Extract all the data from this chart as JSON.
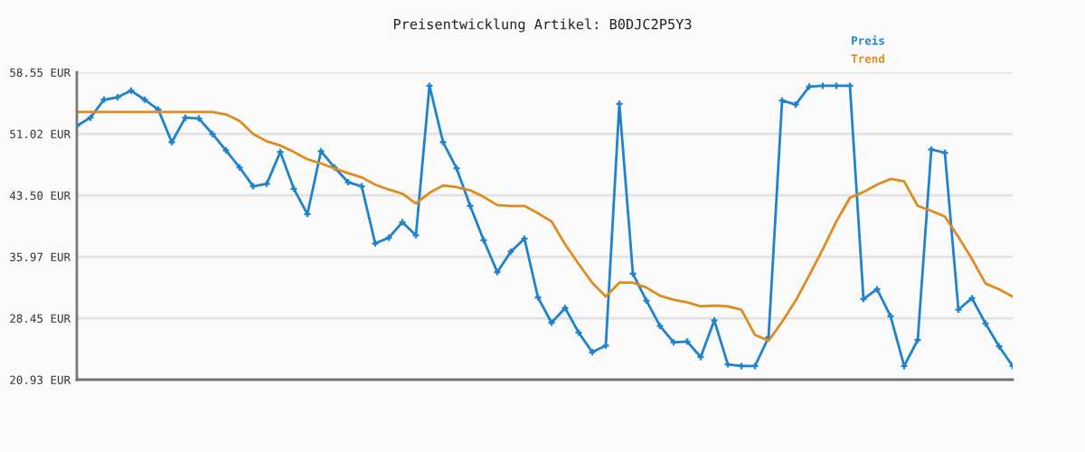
{
  "chart_data": {
    "type": "line",
    "title": "Preisentwicklung Artikel: B0DJC2P5Y3",
    "categories": [
      null,
      null,
      null,
      null,
      null,
      null,
      null,
      null,
      null,
      null,
      null,
      null,
      null,
      null,
      null,
      null,
      null,
      null,
      null,
      null,
      null,
      null,
      null,
      null,
      null,
      null,
      null,
      null,
      null,
      null,
      null,
      null,
      null,
      null,
      null,
      null,
      null,
      null,
      null,
      null,
      null,
      null,
      null,
      null,
      null,
      null,
      null,
      null,
      null,
      null,
      null,
      null,
      null,
      null,
      null,
      null,
      null,
      null,
      null,
      null,
      null,
      null,
      null,
      null,
      null,
      null,
      null,
      null,
      null,
      null
    ],
    "series": [
      {
        "name": "Preis",
        "color": "#1f83cc",
        "marker": "cross",
        "values": [
          52.0,
          53.0,
          55.2,
          55.5,
          56.3,
          55.2,
          54.0,
          50.0,
          53.0,
          52.9,
          51.0,
          49.0,
          46.9,
          44.6,
          44.9,
          48.8,
          44.3,
          41.2,
          48.9,
          46.9,
          45.1,
          44.6,
          37.6,
          38.3,
          40.2,
          38.6,
          56.9,
          50.0,
          46.8,
          42.2,
          38.0,
          34.1,
          36.6,
          38.2,
          31.0,
          27.9,
          29.7,
          26.7,
          24.3,
          25.1,
          54.7,
          33.9,
          30.6,
          27.5,
          25.5,
          25.6,
          23.7,
          28.2,
          22.8,
          22.6,
          22.6,
          26.1,
          55.1,
          54.6,
          56.8,
          56.9,
          56.9,
          56.9,
          30.8,
          32.0,
          28.7,
          22.6,
          25.8,
          49.1,
          48.7,
          29.5,
          30.9,
          27.8,
          25.0,
          22.6
        ]
      },
      {
        "name": "Trend",
        "color": "#e08b1f",
        "marker": "none",
        "values": [
          53.7,
          53.7,
          53.7,
          53.7,
          53.7,
          53.7,
          53.7,
          53.7,
          53.7,
          53.7,
          53.7,
          53.4,
          52.6,
          51.0,
          50.1,
          49.6,
          48.8,
          47.9,
          47.4,
          46.8,
          46.2,
          45.7,
          44.8,
          44.2,
          43.7,
          42.5,
          43.8,
          44.7,
          44.5,
          44.1,
          43.3,
          42.3,
          42.2,
          42.2,
          41.3,
          40.3,
          37.5,
          35.1,
          32.8,
          31.1,
          32.8,
          32.8,
          32.2,
          31.2,
          30.7,
          30.4,
          29.9,
          30.0,
          29.9,
          29.5,
          26.4,
          25.7,
          28.0,
          30.6,
          33.7,
          36.9,
          40.3,
          43.2,
          43.9,
          44.8,
          45.5,
          45.2,
          42.2,
          41.6,
          40.9,
          38.4,
          35.7,
          32.7,
          32.0,
          31.1
        ]
      }
    ],
    "ylim": [
      20.93,
      58.55
    ],
    "yticks": [
      {
        "value": 20.93,
        "label": "20.93 EUR"
      },
      {
        "value": 28.45,
        "label": "28.45 EUR"
      },
      {
        "value": 35.97,
        "label": "35.97 EUR"
      },
      {
        "value": 43.5,
        "label": "43.50 EUR"
      },
      {
        "value": 51.02,
        "label": "51.02 EUR"
      },
      {
        "value": 58.55,
        "label": "58.55 EUR"
      }
    ],
    "grid": "y",
    "legend": "top right",
    "tick_labels": "y"
  }
}
